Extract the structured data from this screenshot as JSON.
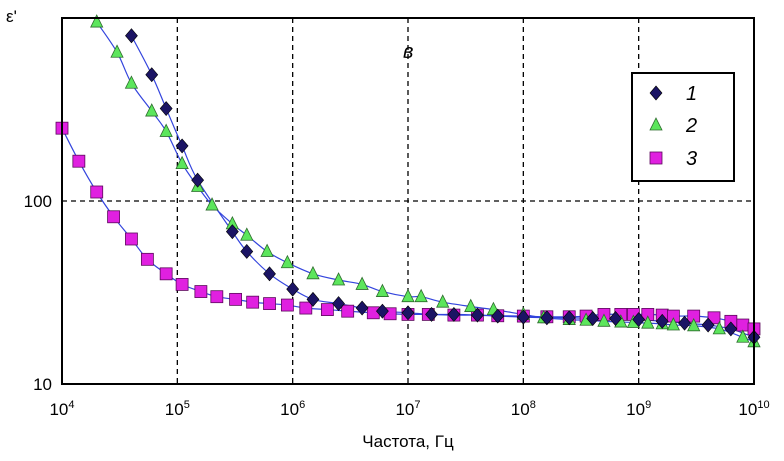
{
  "chart_data": {
    "type": "scatter",
    "title": "",
    "panel_label": "в",
    "xlabel": "Частота, Гц",
    "ylabel": "ε'",
    "x_scale": "log",
    "y_scale": "log",
    "xlim": [
      10000,
      10000000000
    ],
    "ylim": [
      10,
      1000
    ],
    "x_ticks": [
      {
        "base": "10",
        "exp": "4",
        "value": 10000
      },
      {
        "base": "10",
        "exp": "5",
        "value": 100000
      },
      {
        "base": "10",
        "exp": "6",
        "value": 1000000
      },
      {
        "base": "10",
        "exp": "7",
        "value": 10000000
      },
      {
        "base": "10",
        "exp": "8",
        "value": 100000000
      },
      {
        "base": "10",
        "exp": "9",
        "value": 1000000000
      },
      {
        "base": "10",
        "exp": "10",
        "value": 10000000000
      }
    ],
    "y_ticks": [
      {
        "label": "10",
        "value": 10
      },
      {
        "label": "100",
        "value": 100
      }
    ],
    "grid": true,
    "legend_position": "top-right",
    "series": [
      {
        "name": "1",
        "marker": "diamond",
        "color": "#1b1464",
        "x": [
          40000,
          60000,
          80000,
          110000,
          150000,
          300000,
          400000,
          630000,
          1000000,
          1500000,
          2500000,
          4000000,
          6000000,
          10000000,
          16000000,
          25000000,
          40000000,
          60000000,
          100000000,
          160000000,
          250000000,
          400000000,
          630000000,
          1000000000,
          1600000000,
          2500000000,
          4000000000,
          6300000000,
          10000000000
        ],
        "y": [
          800,
          490,
          320,
          200,
          130,
          68,
          53,
          40,
          33,
          29,
          27.5,
          26,
          25,
          24.5,
          24,
          24,
          23.8,
          23.5,
          23.2,
          23,
          23,
          22.8,
          22.8,
          22.5,
          22,
          21.5,
          21,
          20,
          18
        ]
      },
      {
        "name": "2",
        "marker": "triangle",
        "color": "#5ce65c",
        "x": [
          20000,
          30000,
          40000,
          60000,
          80000,
          110000,
          150000,
          200000,
          300000,
          400000,
          600000,
          900000,
          1500000,
          2500000,
          4000000,
          6000000,
          10000000,
          13000000,
          20000000,
          35000000,
          55000000,
          100000000,
          150000000,
          250000000,
          350000000,
          500000000,
          700000000,
          900000000,
          1200000000,
          1600000000,
          2000000000,
          3000000000,
          5000000000,
          8000000000,
          10000000000
        ],
        "y": [
          950,
          650,
          440,
          310,
          240,
          160,
          120,
          95,
          75,
          65,
          53,
          46,
          40,
          37,
          35,
          32,
          30,
          30,
          28,
          26.5,
          25.5,
          24,
          23,
          22.5,
          22.3,
          22,
          21.8,
          21.7,
          21.5,
          21.3,
          21,
          20.8,
          20,
          18,
          17
        ]
      },
      {
        "name": "3",
        "marker": "square",
        "color": "#e020e0",
        "x": [
          10000,
          14000,
          20000,
          28000,
          40000,
          55000,
          80000,
          110000,
          160000,
          220000,
          320000,
          450000,
          630000,
          900000,
          1300000,
          2000000,
          3000000,
          5000000,
          7000000,
          10000000,
          15000000,
          25000000,
          40000000,
          60000000,
          100000000,
          160000000,
          250000000,
          350000000,
          500000000,
          700000000,
          900000000,
          1200000000,
          1600000000,
          2000000000,
          3000000000,
          4500000000,
          6300000000,
          8000000000,
          10000000000
        ],
        "y": [
          250,
          165,
          112,
          82,
          62,
          48,
          40,
          35,
          32,
          30,
          29,
          28,
          27.5,
          27,
          26,
          25.5,
          25,
          24.5,
          24.2,
          24,
          24,
          23.8,
          23.8,
          23.6,
          23.5,
          23.3,
          23.3,
          23.5,
          24,
          24,
          24,
          24,
          23.8,
          23.5,
          23.5,
          23,
          22,
          21,
          20
        ]
      }
    ]
  }
}
